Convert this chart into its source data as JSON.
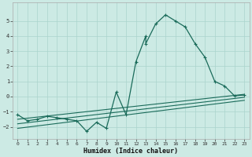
{
  "xlabel": "Humidex (Indice chaleur)",
  "background_color": "#cceae4",
  "grid_color": "#aad4cc",
  "line_color": "#1a6b5a",
  "xlim": [
    -0.5,
    23.5
  ],
  "ylim": [
    -2.8,
    6.2
  ],
  "yticks": [
    -2,
    -1,
    0,
    1,
    2,
    3,
    4,
    5
  ],
  "xticks": [
    0,
    1,
    2,
    3,
    4,
    5,
    6,
    7,
    8,
    9,
    10,
    11,
    12,
    13,
    14,
    15,
    16,
    17,
    18,
    19,
    20,
    21,
    22,
    23
  ],
  "main_x": [
    0,
    1,
    2,
    3,
    4,
    5,
    6,
    7,
    8,
    9,
    10,
    11,
    12,
    13,
    13,
    14,
    15,
    16,
    17,
    18,
    19,
    20,
    21,
    22,
    23
  ],
  "main_y": [
    -1.2,
    -1.6,
    -1.5,
    -1.3,
    -1.4,
    -1.5,
    -1.6,
    -2.3,
    -1.7,
    -2.1,
    0.3,
    -1.2,
    2.3,
    4.0,
    3.5,
    4.8,
    5.4,
    5.0,
    4.6,
    3.5,
    2.6,
    1.0,
    0.7,
    0.05,
    0.1
  ],
  "line2_x": [
    0,
    23
  ],
  "line2_y": [
    -1.5,
    0.15
  ],
  "line3_x": [
    0,
    23
  ],
  "line3_y": [
    -1.8,
    -0.05
  ],
  "line4_x": [
    0,
    23
  ],
  "line4_y": [
    -2.1,
    -0.25
  ],
  "ylabel_fontsize": 6,
  "xlabel_fontsize": 6,
  "tick_fontsize": 5
}
